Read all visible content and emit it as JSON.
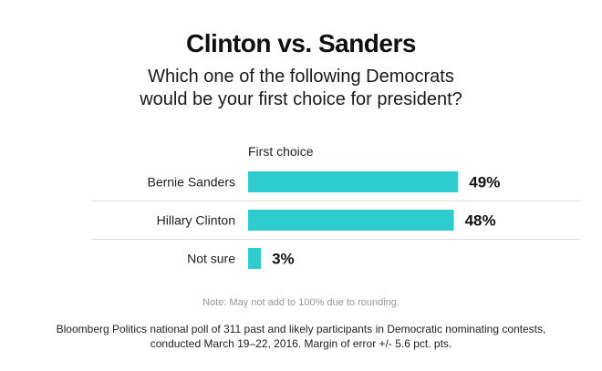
{
  "title": "Clinton vs. Sanders",
  "subtitle": {
    "line1": "Which one of the following Democrats",
    "line2": "would be your first choice for president?"
  },
  "note": "Note: May not add to 100% due to rounding.",
  "source": {
    "line1": "Bloomberg Politics national poll of 311 past and likely participants in Democratic nominating contests,",
    "line2": "conducted March 19–22, 2016. Margin of error +/- 5.6 pct. pts."
  },
  "colors": {
    "bar": "#2ecbcf",
    "separator": "#dddddd"
  },
  "chart_data": {
    "type": "bar",
    "orientation": "horizontal",
    "series": [
      {
        "name": "First choice",
        "values": [
          49,
          48,
          3
        ]
      }
    ],
    "categories": [
      "Bernie Sanders",
      "Hillary Clinton",
      "Not sure"
    ],
    "value_labels": [
      "49%",
      "48%",
      "3%"
    ],
    "unit": "%",
    "xlim": [
      0,
      100
    ],
    "grid": false,
    "legend": "none"
  }
}
